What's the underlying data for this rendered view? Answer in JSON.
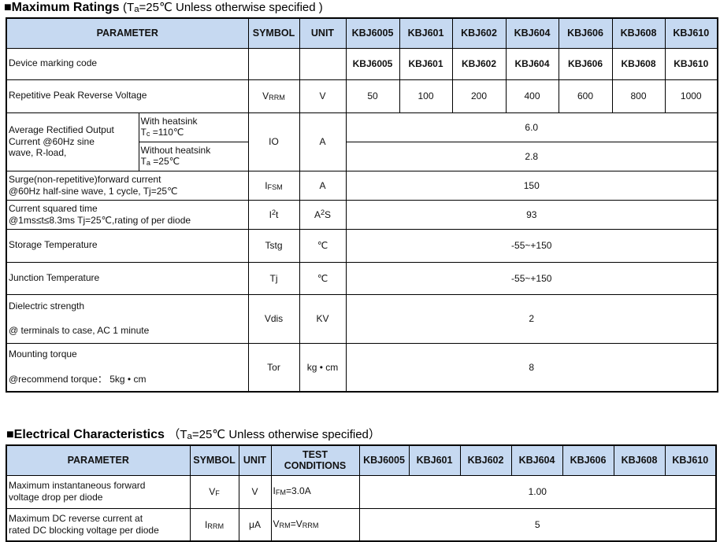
{
  "colors": {
    "header_bg": "#c6d9f1",
    "border": "#000000",
    "text": "#111111"
  },
  "section1": {
    "heading": "■Maximum Ratings",
    "condition": [
      {
        "t": "(T"
      },
      {
        "t": "a",
        "s": "sub"
      },
      {
        "t": "=25℃ Unless otherwise specified )"
      }
    ]
  },
  "table1": {
    "headers": [
      "PARAMETER",
      "SYMBOL",
      "UNIT",
      "KBJ6005",
      "KBJ601",
      "KBJ602",
      "KBJ604",
      "KBJ606",
      "KBJ608",
      "KBJ610"
    ],
    "rows": {
      "marking": {
        "label": "Device marking code",
        "values": [
          "KBJ6005",
          "KBJ601",
          "KBJ602",
          "KBJ604",
          "KBJ606",
          "KBJ608",
          "KBJ610"
        ]
      },
      "vrrm": {
        "label": "Repetitive Peak Reverse Voltage",
        "symbol": [
          {
            "t": "V"
          },
          {
            "t": "RRM",
            "s": "sub"
          }
        ],
        "unit": "V",
        "values": [
          "50",
          "100",
          "200",
          "400",
          "600",
          "800",
          "1000"
        ]
      },
      "io": {
        "label_lines": [
          "Average Rectified Output",
          "Current @60Hz sine",
          "wave, R-load,"
        ],
        "cond1_line1": "With heatsink",
        "cond1_line2": [
          {
            "t": "T"
          },
          {
            "t": "c",
            "s": "sub"
          },
          {
            "t": " =110℃"
          }
        ],
        "cond2_line1": "Without heatsink",
        "cond2_line2": [
          {
            "t": "T"
          },
          {
            "t": "a",
            "s": "sub"
          },
          {
            "t": " =25℃"
          }
        ],
        "symbol": "IO",
        "unit": "A",
        "value1": "6.0",
        "value2": "2.8"
      },
      "ifsm": {
        "label_lines": [
          "Surge(non-repetitive)forward current",
          "@60Hz half-sine wave, 1 cycle,  Tj=25℃"
        ],
        "symbol": [
          {
            "t": "I"
          },
          {
            "t": "FSM",
            "s": "sub"
          }
        ],
        "unit": "A",
        "value": "150"
      },
      "i2t": {
        "label_lines": [
          "Current squared time",
          "@1ms≤t≤8.3ms Tj=25℃,rating of per diode"
        ],
        "symbol": [
          {
            "t": "I"
          },
          {
            "t": "2",
            "s": "sup"
          },
          {
            "t": "t"
          }
        ],
        "unit": [
          {
            "t": "A"
          },
          {
            "t": "2",
            "s": "sup"
          },
          {
            "t": "S"
          }
        ],
        "value": "93"
      },
      "tstg": {
        "label": "Storage Temperature",
        "symbol": "Tstg",
        "unit": "℃",
        "value": "-55~+150"
      },
      "tj": {
        "label": "Junction Temperature",
        "symbol": "Tj",
        "unit": "℃",
        "value": "-55~+150"
      },
      "vdis": {
        "label_lines": [
          "Dielectric strength",
          "@ terminals to case, AC 1 minute"
        ],
        "symbol": "Vdis",
        "unit": "KV",
        "value": "2"
      },
      "tor": {
        "label_lines": [
          "Mounting torque",
          "@recommend torque：  5kg • cm"
        ],
        "symbol": "Tor",
        "unit": "kg • cm",
        "value": "8"
      }
    }
  },
  "section2": {
    "heading": "■Electrical Characteristics",
    "condition": [
      {
        "t": "（T"
      },
      {
        "t": "a",
        "s": "sub"
      },
      {
        "t": "=25℃ Unless otherwise specified）"
      }
    ]
  },
  "table2": {
    "headers": [
      "PARAMETER",
      "SYMBOL",
      "UNIT",
      "TEST CONDITIONS",
      "KBJ6005",
      "KBJ601",
      "KBJ602",
      "KBJ604",
      "KBJ606",
      "KBJ608",
      "KBJ610"
    ],
    "rows": {
      "vf": {
        "label_lines": [
          "Maximum instantaneous forward",
          "voltage drop per diode"
        ],
        "symbol": [
          {
            "t": "V"
          },
          {
            "t": "F",
            "s": "sub"
          }
        ],
        "unit": "V",
        "cond": [
          {
            "t": "I"
          },
          {
            "t": "FM",
            "s": "sub"
          },
          {
            "t": "=3.0A"
          }
        ],
        "value": "1.00"
      },
      "irrm": {
        "label_lines": [
          "Maximum DC reverse current at",
          "rated DC blocking voltage per diode"
        ],
        "symbol": [
          {
            "t": "I"
          },
          {
            "t": "RRM",
            "s": "sub"
          }
        ],
        "unit": "μA",
        "cond": [
          {
            "t": "V"
          },
          {
            "t": "RM",
            "s": "sub"
          },
          {
            "t": "=V"
          },
          {
            "t": "RRM",
            "s": "sub"
          }
        ],
        "value": "5"
      }
    }
  }
}
